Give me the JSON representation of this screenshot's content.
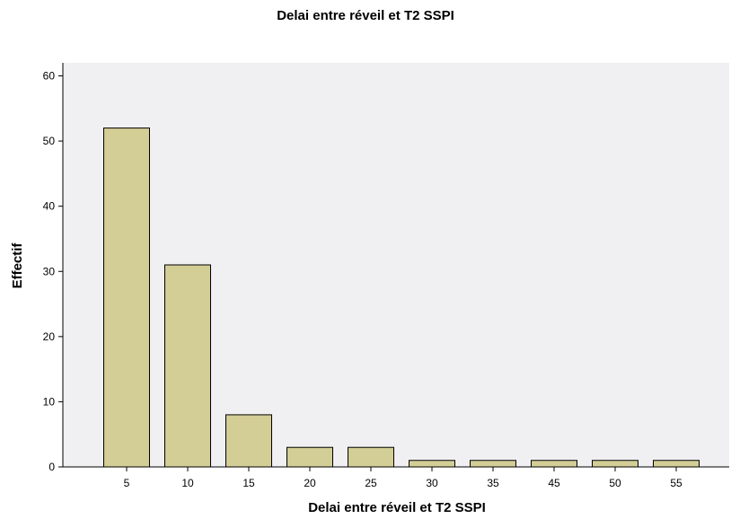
{
  "chart_data": {
    "type": "bar",
    "title": "Delai entre réveil et T2 SSPI",
    "xlabel": "Delai entre réveil et T2 SSPI",
    "ylabel": "Effectif",
    "categories": [
      "5",
      "10",
      "15",
      "20",
      "25",
      "30",
      "35",
      "45",
      "50",
      "55"
    ],
    "values": [
      52,
      31,
      8,
      3,
      3,
      1,
      1,
      1,
      1,
      1
    ],
    "ylim": [
      0,
      62
    ],
    "yticks": [
      0,
      10,
      20,
      30,
      40,
      50,
      60
    ],
    "grid": false,
    "colors": {
      "bar_fill": "#d3cd96",
      "bar_stroke": "#000000",
      "plot_background": "#f0f0f2"
    }
  }
}
